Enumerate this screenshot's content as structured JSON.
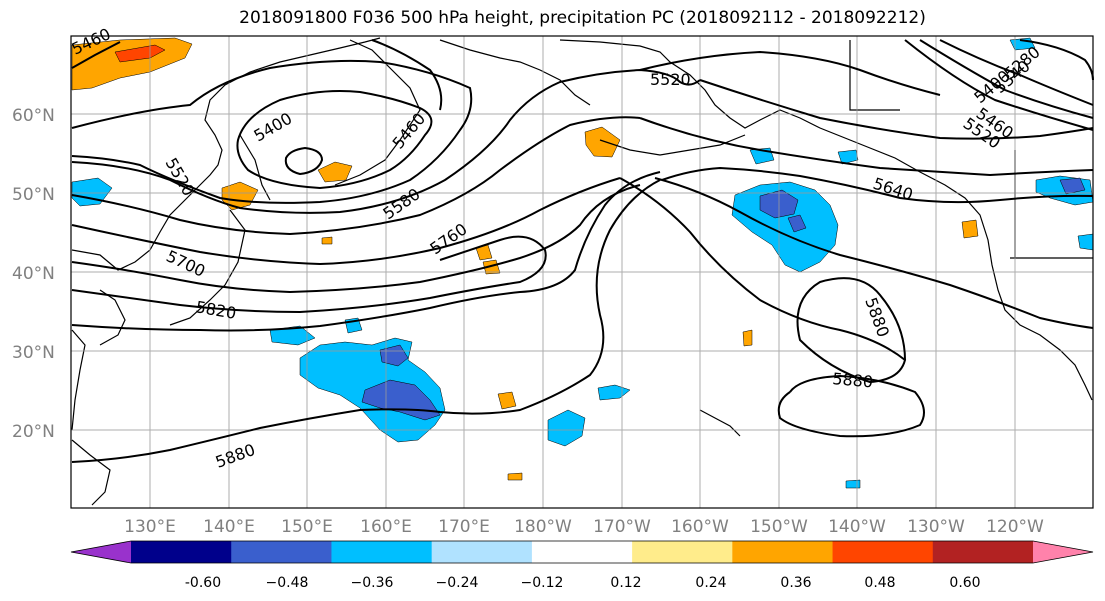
{
  "title": "2018091800 F036 500 hPa height, precipitation PC (2018092112 - 2018092212)",
  "lat_labels": [
    "60°N",
    "50°N",
    "40°N",
    "30°N",
    "20°N"
  ],
  "lon_labels": [
    "130°E",
    "140°E",
    "150°E",
    "160°E",
    "170°E",
    "180°W",
    "170°W",
    "160°W",
    "150°W",
    "140°W",
    "130°W",
    "120°W"
  ],
  "contour_labels": [
    "5460",
    "5520",
    "5400",
    "5460",
    "5520",
    "5580",
    "5760",
    "5700",
    "5820",
    "5880",
    "5640",
    "5880",
    "5880",
    "5280",
    "5340",
    "5400",
    "5460",
    "5520"
  ],
  "colorbar": {
    "ticks": [
      "-0.60",
      "−0.48",
      "−0.36",
      "−0.24",
      "−0.12",
      "0.12",
      "0.24",
      "0.36",
      "0.48",
      "0.60"
    ],
    "colors": [
      "#9932CC",
      "#00008B",
      "#3A5FCD",
      "#00BFFF",
      "#B0E2FF",
      "#FFFFFF",
      "#FFEC8B",
      "#FFA500",
      "#FF4500",
      "#B22222",
      "#FF82AB"
    ]
  },
  "precip_colors": {
    "strong_neg": "#3A5FCD",
    "neg": "#00BFFF",
    "pos": "#FFA500",
    "strong_pos": "#FF4500"
  }
}
